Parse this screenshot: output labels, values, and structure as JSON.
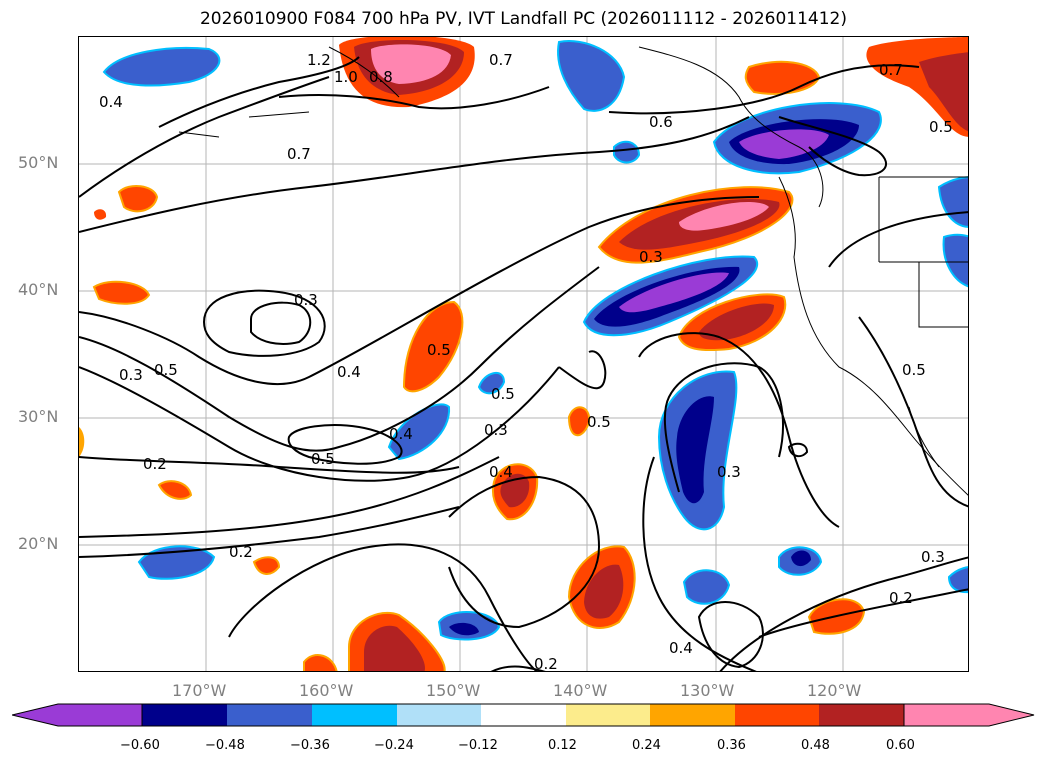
{
  "title": "2026010900 F084 700 hPa PV, IVT Landfall PC (2026011112 - 2026011412)",
  "lat_labels": [
    "50°N",
    "40°N",
    "30°N",
    "20°N"
  ],
  "lon_labels": [
    "170°W",
    "160°W",
    "150°W",
    "140°W",
    "130°W",
    "120°W"
  ],
  "contour_labels": [
    "1.2",
    "1.0",
    "0.8",
    "0.7",
    "0.7",
    "0.6",
    "0.5",
    "0.4",
    "0.7",
    "0.3",
    "0.3",
    "0.5",
    "0.3",
    "0.4",
    "0.5",
    "0.4",
    "0.3",
    "0.5",
    "0.4",
    "0.5",
    "0.2",
    "0.2",
    "0.3",
    "0.2",
    "0.4",
    "0.2",
    "0.5",
    "0.3",
    "0.5"
  ],
  "colorbar": {
    "ticks": [
      "−0.60",
      "−0.48",
      "−0.36",
      "−0.24",
      "−0.12",
      "0.12",
      "0.24",
      "0.36",
      "0.48",
      "0.60"
    ],
    "colors": [
      "#9a3bd6",
      "#00008b",
      "#3a5fcd",
      "#00bfff",
      "#b0e0f8",
      "#ffffff",
      "#fcec8c",
      "#ffa500",
      "#ff4500",
      "#b22222",
      "#ff85b0"
    ]
  },
  "legend_colors": {
    "neg_extreme": "#9a3bd6",
    "pos_extreme": "#ff85b0"
  }
}
